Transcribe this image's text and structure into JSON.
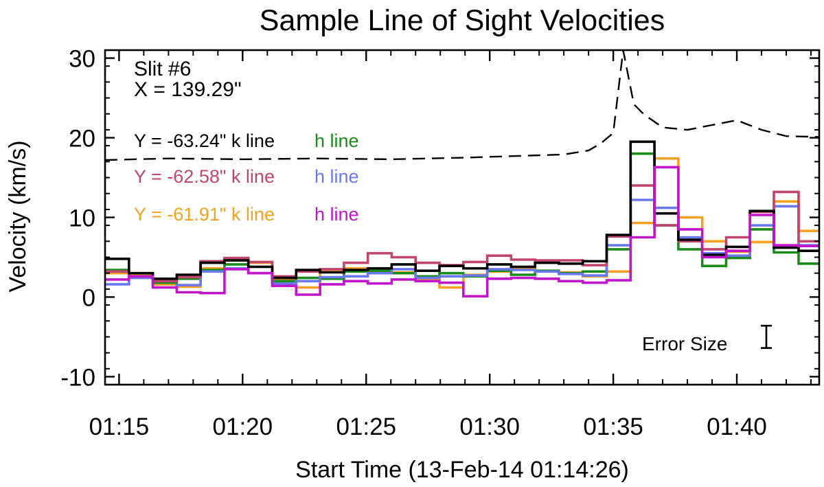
{
  "chart_data": {
    "type": "line",
    "title": "Sample Line of Sight Velocities",
    "xlabel": "Start Time (13-Feb-14 01:14:26)",
    "ylabel": "Velocity (km/s)",
    "xlim": [
      "01:14:26",
      "01:43:20"
    ],
    "ylim": [
      -11,
      31
    ],
    "x_ticks": [
      "01:15",
      "01:20",
      "01:25",
      "01:30",
      "01:35",
      "01:40"
    ],
    "y_ticks": [
      -10,
      0,
      10,
      20,
      30
    ],
    "grid": false,
    "annotations": {
      "slit": "Slit #6",
      "x_position": "X = 139.29\"",
      "error_label": "Error Size",
      "error_bar_half_kms": 1.4
    },
    "legend": [
      {
        "y_label": "Y = -63.24\" k line",
        "y_color": "#000000",
        "h_label": "h line",
        "h_color": "#1a8a1a"
      },
      {
        "y_label": "Y = -62.58\" k line",
        "y_color": "#c0456f",
        "h_label": "h line",
        "h_color": "#6a78f0"
      },
      {
        "y_label": "Y = -61.91\" k line",
        "y_color": "#f5a020",
        "h_label": "h line",
        "h_color": "#c015c8"
      }
    ],
    "bins": [
      "01:14:26",
      "01:15:24",
      "01:16:22",
      "01:17:20",
      "01:18:18",
      "01:19:16",
      "01:20:14",
      "01:21:12",
      "01:22:10",
      "01:23:08",
      "01:24:06",
      "01:25:04",
      "01:26:02",
      "01:27:00",
      "01:27:58",
      "01:28:56",
      "01:29:54",
      "01:30:52",
      "01:31:50",
      "01:32:48",
      "01:33:46",
      "01:34:44",
      "01:35:42",
      "01:36:40",
      "01:37:38",
      "01:38:36",
      "01:39:34",
      "01:40:32",
      "01:41:30",
      "01:42:30"
    ],
    "series": [
      {
        "name": "Y = -63.24\" k line",
        "color": "#000000",
        "style": "step",
        "values": [
          4.8,
          3.0,
          2.3,
          2.8,
          4.3,
          4.6,
          3.8,
          2.4,
          3.4,
          3.1,
          3.4,
          3.6,
          4.1,
          3.3,
          3.9,
          3.6,
          4.1,
          3.8,
          4.3,
          4.2,
          4.5,
          7.8,
          19.5,
          10.5,
          7.2,
          5.3,
          6.3,
          10.8,
          6.2,
          5.8
        ]
      },
      {
        "name": "h line",
        "color": "#1a8a1a",
        "style": "step",
        "values": [
          3.4,
          2.6,
          1.8,
          2.3,
          3.4,
          4.1,
          3.0,
          2.0,
          2.4,
          2.3,
          3.2,
          3.3,
          3.0,
          2.6,
          3.0,
          2.6,
          3.3,
          2.8,
          3.3,
          3.0,
          3.2,
          6.0,
          18.0,
          9.0,
          6.0,
          3.9,
          4.9,
          8.5,
          5.6,
          4.2
        ]
      },
      {
        "name": "Y = -62.58\" k line",
        "color": "#c0456f",
        "style": "step",
        "values": [
          3.2,
          2.6,
          2.0,
          2.5,
          4.5,
          4.9,
          4.4,
          2.6,
          3.2,
          3.5,
          4.3,
          5.5,
          5.0,
          4.3,
          4.0,
          4.4,
          5.2,
          4.7,
          4.6,
          4.6,
          4.0,
          7.6,
          14.0,
          9.0,
          7.0,
          6.0,
          7.5,
          10.7,
          13.2,
          7.0
        ]
      },
      {
        "name": "h line",
        "color": "#6a78f0",
        "style": "step",
        "values": [
          1.6,
          2.4,
          1.2,
          1.5,
          3.2,
          3.6,
          3.0,
          1.7,
          2.0,
          2.5,
          2.6,
          3.0,
          3.5,
          2.4,
          2.6,
          2.7,
          3.5,
          3.4,
          3.2,
          2.9,
          2.7,
          6.5,
          12.2,
          11.2,
          7.5,
          5.5,
          5.2,
          9.0,
          11.4,
          6.5
        ]
      },
      {
        "name": "Y = -61.91\" k line",
        "color": "#f5a020",
        "style": "step",
        "values": [
          3.0,
          2.7,
          1.6,
          1.3,
          3.6,
          4.8,
          4.3,
          2.1,
          1.2,
          3.2,
          3.6,
          3.2,
          3.1,
          2.2,
          1.2,
          2.8,
          3.2,
          3.6,
          3.3,
          3.1,
          2.6,
          3.2,
          9.3,
          17.4,
          10.0,
          7.0,
          5.7,
          6.9,
          12.0,
          8.3
        ]
      },
      {
        "name": "h line",
        "color": "#c015c8",
        "style": "step",
        "values": [
          2.2,
          2.6,
          1.2,
          0.6,
          0.5,
          3.5,
          3.0,
          1.4,
          0.3,
          1.6,
          2.0,
          1.7,
          2.2,
          2.0,
          1.8,
          0.1,
          2.3,
          2.4,
          2.3,
          2.0,
          1.8,
          2.1,
          7.5,
          16.3,
          8.5,
          5.0,
          5.8,
          10.3,
          6.5,
          6.4
        ]
      },
      {
        "name": "",
        "color": "#000000",
        "style": "dashed",
        "x": [
          "01:14:26",
          "01:17:00",
          "01:20:00",
          "01:23:00",
          "01:26:00",
          "01:29:00",
          "01:31:00",
          "01:33:00",
          "01:34:00",
          "01:34:30",
          "01:35:00",
          "01:35:24",
          "01:35:50",
          "01:36:15",
          "01:37:00",
          "01:38:00",
          "01:39:00",
          "01:40:00",
          "01:41:00",
          "01:42:00",
          "01:43:20"
        ],
        "values": [
          17.2,
          17.4,
          17.3,
          17.4,
          17.3,
          17.5,
          17.7,
          17.9,
          18.4,
          19.3,
          20.6,
          31.0,
          24.2,
          22.9,
          21.3,
          21.0,
          21.6,
          22.2,
          21.0,
          20.2,
          20.1
        ]
      }
    ]
  }
}
